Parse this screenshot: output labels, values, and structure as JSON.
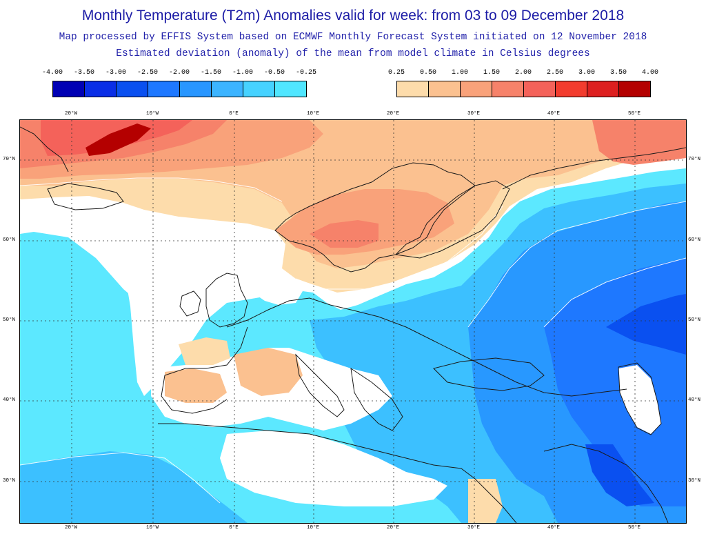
{
  "header": {
    "title": "Monthly Temperature (T2m) Anomalies valid for week: from 03 to 09 December 2018",
    "subtitle1": "Map processed by EFFIS System based on ECMWF Monthly Forecast System initiated on 12 November 2018",
    "subtitle2": "Estimated deviation (anomaly) of the mean from model climate in Celsius degrees"
  },
  "legend_negative": {
    "labels": [
      "-4.00",
      "-3.50",
      "-3.00",
      "-2.50",
      "-2.00",
      "-1.50",
      "-1.00",
      "-0.50",
      "-0.25"
    ],
    "colors": [
      "#0000b4",
      "#0a2ee6",
      "#0a50f0",
      "#1e78ff",
      "#2896ff",
      "#3cb4ff",
      "#46d2ff",
      "#50e6ff"
    ]
  },
  "legend_positive": {
    "labels": [
      "0.25",
      "0.50",
      "1.00",
      "1.50",
      "2.00",
      "2.50",
      "3.00",
      "3.50",
      "4.00"
    ],
    "colors": [
      "#fddcab",
      "#fbc190",
      "#f9a27a",
      "#f6826a",
      "#f4625a",
      "#f23c2e",
      "#dd2020",
      "#b40000"
    ]
  },
  "map": {
    "lon_labels": [
      "20°W",
      "10°W",
      "0°E",
      "10°E",
      "20°E",
      "30°E",
      "40°E",
      "50°E"
    ],
    "lat_labels": [
      "70°N",
      "60°N",
      "50°N",
      "40°N",
      "30°N"
    ],
    "colors": {
      "land_outline": "#1a1a1a",
      "contour": "#ffffff",
      "grid": "#333333"
    }
  }
}
